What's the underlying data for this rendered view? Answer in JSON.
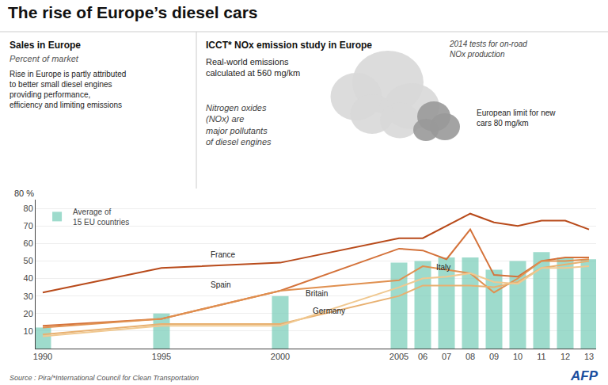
{
  "chart_data": {
    "type": "bar",
    "title": "The rise of Europe’s diesel cars",
    "x": [
      1990,
      1995,
      2000,
      2005,
      2006,
      2007,
      2008,
      2009,
      2010,
      2011,
      2012,
      2013
    ],
    "series": [
      {
        "name": "Average of\n15 EU countries",
        "type": "bar",
        "color": "#7ecfbc",
        "values": [
          12,
          20,
          30,
          49,
          50,
          52,
          52,
          45,
          50,
          55,
          52,
          51
        ]
      },
      {
        "name": "France",
        "type": "line",
        "color": "#b84a1a",
        "values": [
          32,
          46,
          49,
          63,
          63,
          70,
          77,
          72,
          70,
          73,
          73,
          68
        ]
      },
      {
        "name": "Spain",
        "type": "line",
        "color": "#d4723a",
        "values": [
          13,
          17,
          33,
          57,
          56,
          51,
          68,
          42,
          41,
          50,
          52,
          52
        ]
      },
      {
        "name": "Italy",
        "type": "line",
        "color": "#e09050",
        "values": [
          12,
          17,
          33,
          39,
          47,
          45,
          43,
          32,
          40,
          50,
          50,
          51
        ]
      },
      {
        "name": "Britain",
        "type": "line",
        "color": "#e8b070",
        "values": [
          8,
          14,
          14,
          30,
          36,
          36,
          36,
          35,
          38,
          46,
          48,
          50
        ]
      },
      {
        "name": "Germany",
        "type": "line",
        "color": "#f0c890",
        "values": [
          7,
          13,
          13,
          35,
          40,
          41,
          43,
          38,
          37,
          46,
          46,
          47
        ]
      }
    ],
    "xlim": [
      1989.7,
      2013.3
    ],
    "xticks": [
      1990,
      1995,
      2000,
      2005,
      {
        "value": 2006,
        "label": "06"
      },
      {
        "value": 2007,
        "label": "07"
      },
      {
        "value": 2008,
        "label": "08"
      },
      {
        "value": 2009,
        "label": "09"
      },
      {
        "value": 2010,
        "label": "10"
      },
      {
        "value": 2011,
        "label": "11"
      },
      {
        "value": 2012,
        "label": "12"
      },
      {
        "value": 2013,
        "label": "13"
      }
    ],
    "ylim": [
      0,
      85
    ],
    "yticks": [
      10,
      20,
      30,
      40,
      50,
      60,
      70,
      80
    ],
    "grid": "y",
    "legend": "upper left",
    "annotations": [
      {
        "text": "Sales in Europe"
      },
      {
        "text": "Percent of market"
      },
      {
        "text": "Rise in Europe is partly attributed\nto better small diesel engines\nproviding performance,\nefficiency and limiting emissions"
      },
      {
        "text": "ICCT* NOx emission study in Europe"
      },
      {
        "text": "Real-world emissions\ncalculated at 560 mg/km"
      },
      {
        "text": "Nitrogen oxides\n(NOx) are\nmajor pollutants\nof diesel engines"
      },
      {
        "text": "2014 tests for on-road\nNOx production"
      },
      {
        "text": "European limit for new\ncars 80 mg/km"
      },
      {
        "text": "80 %"
      },
      {
        "text": "Source : Pira/*International Council for Clean Transportation"
      },
      {
        "text": "AFP"
      },
      {
        "text": "France",
        "x": 1997,
        "y": 50
      },
      {
        "text": "Spain",
        "x": 1997,
        "y": 33
      },
      {
        "text": "Italy",
        "x": 2006.5,
        "y": 43
      },
      {
        "text": "Britain",
        "x": 2001,
        "y": 28
      },
      {
        "text": "Germany",
        "x": 2001.3,
        "y": 18
      }
    ]
  }
}
